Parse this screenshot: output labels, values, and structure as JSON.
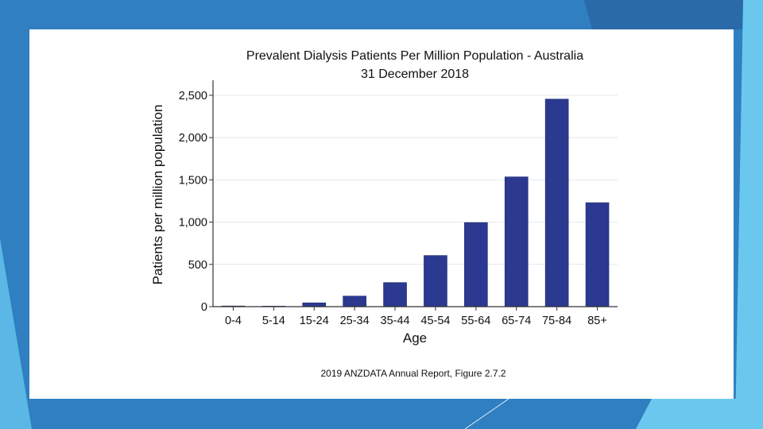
{
  "chart_data": {
    "type": "bar",
    "title": "Prevalent Dialysis Patients Per Million Population - Australia",
    "subtitle": "31 December 2018",
    "xlabel": "Age",
    "ylabel": "Patients per million population",
    "categories": [
      "0-4",
      "5-14",
      "15-24",
      "25-34",
      "35-44",
      "45-54",
      "55-64",
      "65-74",
      "75-84",
      "85+"
    ],
    "values": [
      8,
      6,
      45,
      125,
      285,
      605,
      995,
      1535,
      2455,
      1230
    ],
    "ylim": [
      0,
      2650
    ],
    "yticks": [
      0,
      500,
      1000,
      1500,
      2000,
      2500
    ],
    "ytick_labels": [
      "0",
      "500",
      "1,000",
      "1,500",
      "2,000",
      "2,500"
    ],
    "grid": true,
    "bar_color": "#2b3990",
    "source": "2019 ANZDATA Annual Report, Figure 2.7.2"
  }
}
